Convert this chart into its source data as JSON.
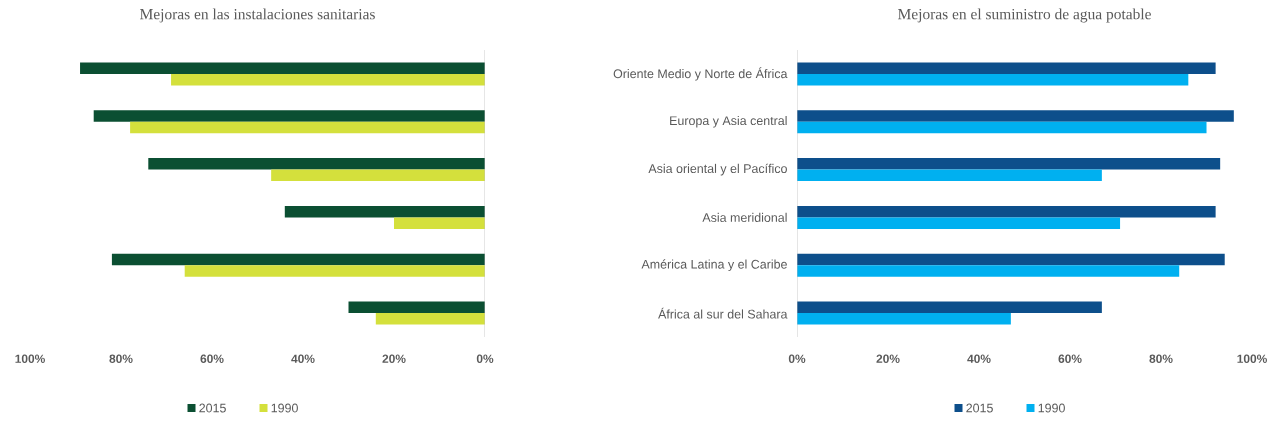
{
  "chart_data": [
    {
      "type": "bar",
      "orientation": "horizontal",
      "title": "Mejoras en las instalaciones sanitarias",
      "categories": [
        null,
        null,
        null,
        null,
        null,
        null
      ],
      "series": [
        {
          "name": "2015",
          "color": "#0b4f32",
          "values": [
            89,
            86,
            74,
            44,
            82,
            30
          ]
        },
        {
          "name": "1990",
          "color": "#d4e03c",
          "values": [
            69,
            78,
            47,
            20,
            66,
            24
          ]
        }
      ],
      "xlim": [
        100,
        0
      ],
      "xticks": [
        {
          "value": 100,
          "label": "100%"
        },
        {
          "value": 80,
          "label": "80%"
        },
        {
          "value": 60,
          "label": "60%"
        },
        {
          "value": 40,
          "label": "40%"
        },
        {
          "value": 20,
          "label": "20%"
        },
        {
          "value": 0,
          "label": "0%"
        }
      ],
      "tick_labels": "x",
      "legend": "bottom"
    },
    {
      "type": "bar",
      "orientation": "horizontal",
      "title": "Mejoras en el suministro de agua potable",
      "categories": [
        "Oriente Medio y Norte de África",
        "Europa y Asia central",
        "Asia oriental y el Pacífico",
        "Asia meridional",
        "América Latina y el Caribe",
        "África al sur del Sahara"
      ],
      "series": [
        {
          "name": "2015",
          "color": "#0d4f8b",
          "values": [
            92,
            96,
            93,
            92,
            94,
            67
          ]
        },
        {
          "name": "1990",
          "color": "#00b0f0",
          "values": [
            86,
            90,
            67,
            71,
            84,
            47
          ]
        }
      ],
      "xlim": [
        0,
        100
      ],
      "xticks": [
        {
          "value": 0,
          "label": "0%"
        },
        {
          "value": 20,
          "label": "20%"
        },
        {
          "value": 40,
          "label": "40%"
        },
        {
          "value": 60,
          "label": "60%"
        },
        {
          "value": 80,
          "label": "80%"
        },
        {
          "value": 100,
          "label": "100%"
        }
      ],
      "legend": "bottom"
    }
  ]
}
